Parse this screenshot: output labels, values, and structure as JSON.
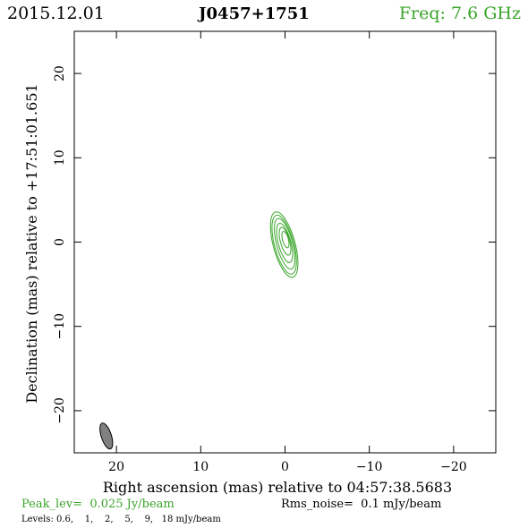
{
  "header": {
    "date": "2015.12.01",
    "source": "J0457+1751",
    "freq": "Freq: 7.6 GHz"
  },
  "footer": {
    "peak": "Peak_lev=  0.025 Jy/beam",
    "rms": "Rms_noise=  0.1 mJy/beam",
    "levels": "Levels: 0.6,    1,    2,    5,    9,   18 mJy/beam"
  },
  "colors": {
    "contour": "#3aa52a",
    "beam": "#808080",
    "axis": "#000000"
  },
  "chart_data": {
    "type": "contour",
    "title": "J0457+1751",
    "xlabel": "Right ascension (mas) relative to 04:57:38.5683",
    "ylabel": "Declination (mas) relative to +17:51:01.651",
    "xlim": [
      25,
      -25
    ],
    "ylim": [
      -25,
      25
    ],
    "x_ticks": [
      20,
      10,
      0,
      -10,
      -20
    ],
    "y_ticks": [
      -20,
      -10,
      0,
      10,
      20
    ],
    "x_tick_labels": [
      "20",
      "10",
      "0",
      "−10",
      "−20"
    ],
    "y_tick_labels": [
      "−20",
      "−10",
      "0",
      "10",
      "20"
    ],
    "contour_levels_mJy": [
      0.6,
      1,
      2,
      5,
      9,
      18
    ],
    "contours": [
      {
        "level": 0.6,
        "cx": 0.1,
        "cy": -0.3,
        "a": 1.3,
        "b": 4.0,
        "angle_deg": -15
      },
      {
        "level": 1,
        "cx": 0.1,
        "cy": -0.3,
        "a": 1.15,
        "b": 3.6,
        "angle_deg": -15
      },
      {
        "level": 2,
        "cx": 0.05,
        "cy": -0.2,
        "a": 0.95,
        "b": 3.1,
        "angle_deg": -15
      },
      {
        "level": 5,
        "cx": 0.05,
        "cy": -0.1,
        "a": 0.75,
        "b": 2.4,
        "angle_deg": -15
      },
      {
        "level": 9,
        "cx": 0.0,
        "cy": 0.1,
        "a": 0.55,
        "b": 1.7,
        "angle_deg": -15
      },
      {
        "level": 18,
        "cx": -0.05,
        "cy": 0.3,
        "a": 0.35,
        "b": 1.0,
        "angle_deg": -15
      }
    ],
    "beam": {
      "cx": 21.2,
      "cy": -23.0,
      "major": 3.2,
      "minor": 1.2,
      "angle_deg": 18
    }
  }
}
